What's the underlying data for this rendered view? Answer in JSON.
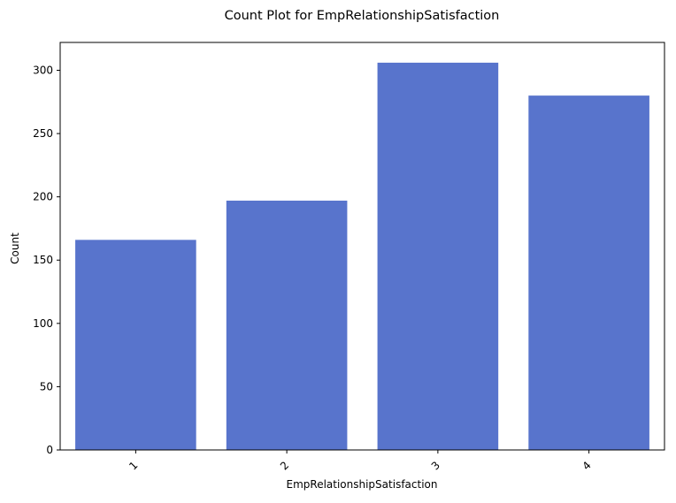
{
  "chart_data": {
    "type": "bar",
    "title": "Count Plot for EmpRelationshipSatisfaction",
    "xlabel": "EmpRelationshipSatisfaction",
    "ylabel": "Count",
    "categories": [
      "1",
      "2",
      "3",
      "4"
    ],
    "values": [
      166,
      197,
      306,
      280
    ],
    "ylim": [
      0,
      322
    ],
    "yticks": [
      0,
      50,
      100,
      150,
      200,
      250,
      300
    ],
    "bar_color": "#5874cc",
    "grid": false,
    "legend": "none",
    "xtick_rotation": 45
  }
}
